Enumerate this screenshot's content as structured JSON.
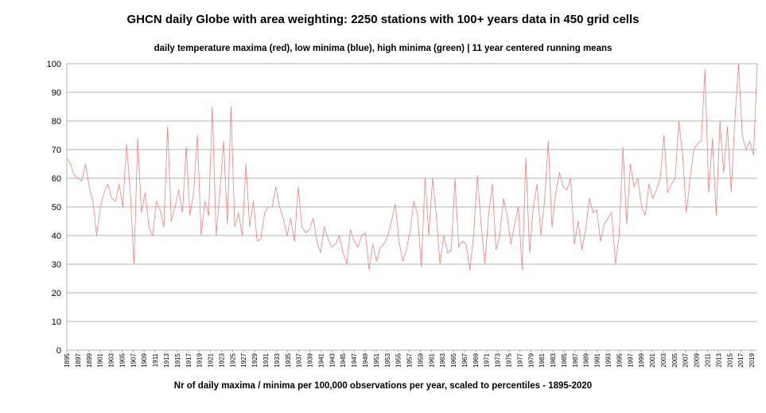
{
  "chart_data": {
    "type": "line",
    "title": "GHCN daily Globe with area weighting: 2250 stations with 100+ years data in 450 grid cells",
    "subtitle": "daily temperature maxima (red), low minima (blue), high minima (green) | 11 year centered running means",
    "xlabel": "Nr of daily maxima / minima per 100,000 observations per year, scaled to percentiles - 1895-2020",
    "ylabel": "",
    "ylim": [
      0,
      100
    ],
    "yticks": [
      0,
      10,
      20,
      30,
      40,
      50,
      60,
      70,
      80,
      90,
      100
    ],
    "x_range": [
      1895,
      2020
    ],
    "xtick_labels": [
      "1895",
      "1897",
      "1899",
      "1901",
      "1903",
      "1905",
      "1907",
      "1909",
      "1911",
      "1913",
      "1915",
      "1917",
      "1919",
      "1921",
      "1923",
      "1925",
      "1927",
      "1929",
      "1931",
      "1933",
      "1935",
      "1937",
      "1939",
      "1941",
      "1943",
      "1945",
      "1947",
      "1949",
      "1951",
      "1953",
      "1955",
      "1957",
      "1959",
      "1961",
      "1963",
      "1965",
      "1967",
      "1969",
      "1971",
      "1973",
      "1975",
      "1977",
      "1979",
      "1981",
      "1983",
      "1985",
      "1987",
      "1989",
      "1991",
      "1993",
      "1995",
      "1997",
      "1999",
      "2001",
      "2003",
      "2005",
      "2007",
      "2009",
      "2011",
      "2013",
      "2015",
      "2017",
      "2019"
    ],
    "grid": true,
    "legend": "none",
    "colors": {
      "red": "#e8151b",
      "red_light": "#f08080",
      "blue": "#3465a4",
      "blue_light": "#8aa5cc",
      "green": "#237d23",
      "green_light": "#74c474",
      "grid": "#b3b3b3",
      "axis": "#b3b3b3"
    },
    "series": [
      {
        "color_key": "red_light",
        "kind": "annual",
        "start_year": 1895,
        "values": [
          67,
          65,
          61,
          60,
          59,
          65,
          57,
          52,
          40,
          50,
          55,
          58,
          53,
          52,
          58,
          50,
          72,
          55,
          30,
          74,
          48,
          55,
          43,
          40,
          52,
          49,
          43,
          78,
          45,
          50,
          56,
          48,
          71,
          47,
          55,
          75,
          40,
          52,
          47,
          85,
          40,
          55,
          73,
          44,
          85,
          43,
          48,
          40,
          65,
          43,
          52,
          38,
          39,
          48,
          50,
          50,
          57,
          50,
          46,
          40,
          46,
          38,
          57,
          43,
          41,
          42,
          46,
          38,
          34,
          43,
          39,
          36,
          37,
          40,
          34,
          30,
          42,
          38,
          36,
          40,
          41,
          28,
          37,
          31,
          36,
          37,
          40,
          45,
          51,
          38,
          31,
          35,
          42,
          52,
          47,
          29,
          60,
          40,
          60,
          47,
          30,
          40,
          34,
          35,
          60,
          36,
          38,
          37,
          28,
          40,
          61,
          44,
          30,
          47,
          58,
          35,
          40,
          53,
          47,
          37,
          44,
          50,
          28,
          67,
          34,
          50,
          58,
          40,
          52,
          73,
          43,
          55,
          62,
          57,
          56,
          60,
          37,
          45,
          35,
          42,
          53,
          48,
          49,
          38,
          44,
          46,
          48,
          30,
          40,
          71,
          44,
          65,
          57,
          60,
          50,
          47,
          58,
          53,
          56,
          60,
          75,
          55,
          58,
          60,
          80,
          68,
          48,
          60,
          70,
          72,
          73,
          98,
          55,
          74,
          47,
          80,
          62,
          78,
          55,
          80,
          100,
          75,
          70,
          73,
          68,
          100
        ]
      }
    ]
  }
}
